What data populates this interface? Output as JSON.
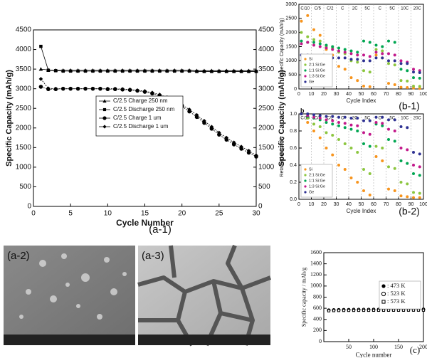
{
  "chart_data": [
    {
      "type": "line",
      "caption": "(a-1)",
      "xlabel": "Cycle Number",
      "ylabel": "Specific Capacity (mAh/g)",
      "y2label": "Specific Capacity (mAh/g)",
      "xlim": [
        0,
        30
      ],
      "xticks": [
        0,
        5,
        10,
        15,
        20,
        25,
        30
      ],
      "ylim": [
        0,
        4500
      ],
      "yticks": [
        0,
        500,
        1000,
        1500,
        2000,
        2500,
        3000,
        3500,
        4000,
        4500
      ],
      "y2lim": [
        0,
        4500
      ],
      "y2ticks": [
        0,
        500,
        1000,
        1500,
        2000,
        2500,
        3000,
        3500,
        4000,
        4500
      ],
      "legend": "center",
      "x": [
        1,
        2,
        3,
        4,
        5,
        6,
        7,
        8,
        9,
        10,
        11,
        12,
        13,
        14,
        15,
        16,
        17,
        18,
        19,
        20,
        21,
        22,
        23,
        24,
        25,
        26,
        27,
        28,
        29,
        30
      ],
      "series": [
        {
          "name": "C/2.5 Charge 250 nm",
          "color": "#000000",
          "marker": "triangle",
          "values": [
            3500,
            3480,
            3470,
            3470,
            3470,
            3470,
            3470,
            3470,
            3470,
            3470,
            3470,
            3470,
            3470,
            3470,
            3470,
            3470,
            3470,
            3470,
            3470,
            3470,
            3470,
            3460,
            3460,
            3460,
            3460,
            3460,
            3460,
            3460,
            3460,
            3460
          ]
        },
        {
          "name": "C/2.5 Discharge 250 nm",
          "color": "#000000",
          "marker": "square",
          "values": [
            4080,
            3470,
            3460,
            3450,
            3450,
            3450,
            3450,
            3450,
            3450,
            3450,
            3450,
            3450,
            3450,
            3450,
            3450,
            3450,
            3450,
            3450,
            3450,
            3450,
            3450,
            3440,
            3440,
            3440,
            3440,
            3440,
            3440,
            3440,
            3440,
            3440
          ]
        },
        {
          "name": "C/2.5 Charge 1 um",
          "color": "#000000",
          "marker": "circle",
          "values": [
            3050,
            2990,
            2990,
            3000,
            3000,
            3000,
            3000,
            3000,
            3000,
            2990,
            2990,
            2980,
            2970,
            2950,
            2920,
            2880,
            2820,
            2750,
            2650,
            2550,
            2420,
            2280,
            2130,
            1980,
            1830,
            1700,
            1580,
            1470,
            1370,
            1270
          ]
        },
        {
          "name": "C/2.5 Discharge 1 um",
          "color": "#000000",
          "marker": "diamond",
          "values": [
            3250,
            3010,
            3000,
            3000,
            3000,
            3000,
            3000,
            3000,
            3000,
            3000,
            3000,
            2990,
            2980,
            2960,
            2940,
            2900,
            2850,
            2780,
            2690,
            2590,
            2470,
            2330,
            2180,
            2030,
            1880,
            1750,
            1630,
            1520,
            1420,
            1300
          ]
        }
      ]
    },
    {
      "type": "scatter",
      "caption": "(b-1)",
      "xlabel": "Cycle Index",
      "ylabel": "Specific Capacity (mAh/g)",
      "xlim": [
        0,
        100
      ],
      "xticks": [
        0,
        10,
        20,
        30,
        40,
        50,
        60,
        70,
        80,
        90,
        100
      ],
      "ylim": [
        0,
        3000
      ],
      "yticks": [
        0,
        500,
        1000,
        1500,
        2000,
        2500,
        3000
      ],
      "rate_labels": [
        "C/10",
        "C/5",
        "C/2",
        "C",
        "2C",
        "5C",
        "C",
        "5C",
        "10C",
        "20C"
      ],
      "legend": "lower left",
      "x": [
        2,
        7,
        12,
        17,
        22,
        27,
        32,
        37,
        42,
        47,
        52,
        57,
        62,
        67,
        72,
        77,
        82,
        87,
        92,
        97
      ],
      "series": [
        {
          "name": "Si",
          "color": "#f7941d",
          "marker": "circle",
          "values": [
            2400,
            2600,
            2100,
            1900,
            1400,
            1200,
            800,
            700,
            400,
            300,
            100,
            80,
            1200,
            1100,
            200,
            150,
            60,
            50,
            30,
            20
          ]
        },
        {
          "name": "2:1 Si:Ge",
          "color": "#8cc63f",
          "marker": "circle",
          "values": [
            2000,
            1850,
            1750,
            1700,
            1500,
            1450,
            1300,
            1250,
            1000,
            950,
            650,
            600,
            1400,
            1350,
            900,
            850,
            300,
            280,
            100,
            90
          ]
        },
        {
          "name": "1:1 Si:Ge",
          "color": "#00a651",
          "marker": "circle",
          "values": [
            1700,
            1650,
            1650,
            1600,
            1550,
            1500,
            1450,
            1400,
            1350,
            1300,
            1700,
            1650,
            1550,
            1500,
            1700,
            1650,
            700,
            650,
            400,
            380
          ]
        },
        {
          "name": "1:3 Si:Ge",
          "color": "#c2188a",
          "marker": "circle",
          "values": [
            1600,
            1650,
            1550,
            1500,
            1450,
            1400,
            1350,
            1300,
            1250,
            1200,
            1200,
            1150,
            1300,
            1250,
            1250,
            1200,
            1000,
            950,
            700,
            650
          ]
        },
        {
          "name": "Ge",
          "color": "#2e3192",
          "marker": "circle",
          "values": [
            1200,
            1200,
            1150,
            1150,
            1100,
            1100,
            1100,
            1100,
            1050,
            1050,
            1000,
            1000,
            1100,
            1100,
            1000,
            1000,
            900,
            900,
            600,
            580
          ]
        }
      ]
    },
    {
      "type": "scatter",
      "caption": "(b-2)",
      "panel_letter": "b",
      "xlabel": "Cycle Index",
      "ylabel": "Retained Capacity",
      "xlim": [
        0,
        100
      ],
      "xticks": [
        0,
        10,
        20,
        30,
        40,
        50,
        60,
        70,
        80,
        90,
        100
      ],
      "ylim": [
        0,
        1
      ],
      "yticks": [
        {
          "value": 0,
          "label": "0.0"
        },
        0.2,
        0.4,
        0.6,
        0.8,
        {
          "value": 1,
          "label": "1.0"
        }
      ],
      "rate_labels": [
        "C/10",
        "C/5",
        "C/2",
        "C",
        "2C",
        "5C",
        "C",
        "5C",
        "10C",
        "20C"
      ],
      "legend": "lower left",
      "x": [
        2,
        7,
        12,
        17,
        22,
        27,
        32,
        37,
        42,
        47,
        52,
        57,
        62,
        67,
        72,
        77,
        82,
        87,
        92,
        97
      ],
      "series": [
        {
          "name": "Si",
          "color": "#f7941d",
          "marker": "circle",
          "values": [
            1.0,
            0.9,
            0.8,
            0.72,
            0.6,
            0.52,
            0.4,
            0.35,
            0.25,
            0.2,
            0.1,
            0.05,
            0.5,
            0.45,
            0.12,
            0.1,
            0.04,
            0.03,
            0.02,
            0.02
          ]
        },
        {
          "name": "2:1 Si:Ge",
          "color": "#8cc63f",
          "marker": "circle",
          "values": [
            1.0,
            0.95,
            0.88,
            0.85,
            0.78,
            0.75,
            0.7,
            0.65,
            0.6,
            0.55,
            0.35,
            0.3,
            0.62,
            0.6,
            0.38,
            0.36,
            0.2,
            0.18,
            0.08,
            0.07
          ]
        },
        {
          "name": "1:1 Si:Ge",
          "color": "#00a651",
          "marker": "circle",
          "values": [
            1.0,
            0.97,
            0.95,
            0.93,
            0.9,
            0.88,
            0.86,
            0.84,
            0.82,
            0.8,
            0.65,
            0.62,
            0.88,
            0.86,
            0.7,
            0.68,
            0.45,
            0.42,
            0.3,
            0.28
          ]
        },
        {
          "name": "1:3 Si:Ge",
          "color": "#c2188a",
          "marker": "circle",
          "values": [
            1.0,
            0.98,
            0.96,
            0.95,
            0.93,
            0.92,
            0.9,
            0.89,
            0.87,
            0.86,
            0.78,
            0.76,
            0.9,
            0.89,
            0.82,
            0.8,
            0.6,
            0.58,
            0.4,
            0.38
          ]
        },
        {
          "name": "Ge",
          "color": "#2e3192",
          "marker": "circle",
          "values": [
            1.0,
            1.0,
            0.99,
            0.98,
            0.97,
            0.97,
            0.96,
            0.96,
            0.95,
            0.95,
            0.92,
            0.92,
            0.96,
            0.96,
            0.93,
            0.93,
            0.85,
            0.84,
            0.55,
            0.53
          ]
        }
      ]
    },
    {
      "type": "scatter",
      "caption": "(c)",
      "xlabel": "Cycle number",
      "ylabel": "Specific capacity / mAh/g",
      "xlim": [
        0,
        200
      ],
      "xticks": [
        50,
        100,
        150,
        200
      ],
      "ylim": [
        0,
        1600
      ],
      "yticks": [
        0,
        200,
        400,
        600,
        800,
        1000,
        1200,
        1400,
        1600
      ],
      "legend": "upper right",
      "x": [
        10,
        20,
        30,
        40,
        50,
        60,
        70,
        80,
        90,
        100,
        110,
        120,
        130,
        140,
        150,
        160,
        170,
        180,
        190,
        200
      ],
      "series": [
        {
          "name": ": 473 K",
          "color": "#000000",
          "marker": "circle",
          "values": [
            570,
            575,
            578,
            580,
            580,
            582,
            582,
            583,
            583,
            584,
            584,
            585,
            585,
            585,
            586,
            586,
            586,
            587,
            587,
            587
          ]
        },
        {
          "name": ": 523 K",
          "color": "#000000",
          "marker": "circle-open",
          "values": [
            565,
            568,
            570,
            572,
            572,
            573,
            574,
            574,
            575,
            575,
            575,
            576,
            576,
            576,
            577,
            577,
            577,
            577,
            578,
            578
          ]
        },
        {
          "name": ": 573 K",
          "color": "#000000",
          "marker": "square-open",
          "values": [
            555,
            558,
            560,
            561,
            562,
            562,
            563,
            563,
            563,
            564,
            564,
            564,
            565,
            565,
            565,
            565,
            566,
            566,
            566,
            566
          ]
        }
      ]
    }
  ],
  "images": [
    {
      "label": "(a-2)"
    },
    {
      "label": "(a-3)"
    }
  ]
}
